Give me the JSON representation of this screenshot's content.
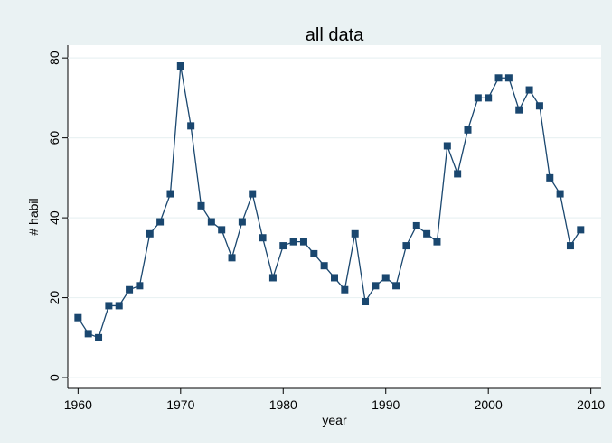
{
  "chart_data": {
    "type": "line",
    "title": "all data",
    "x_label": "year",
    "y_label": "# habil",
    "x": [
      1960,
      1961,
      1962,
      1963,
      1964,
      1965,
      1966,
      1967,
      1968,
      1969,
      1970,
      1971,
      1972,
      1973,
      1974,
      1975,
      1976,
      1977,
      1978,
      1979,
      1980,
      1981,
      1982,
      1983,
      1984,
      1985,
      1986,
      1987,
      1988,
      1989,
      1990,
      1991,
      1992,
      1993,
      1994,
      1995,
      1996,
      1997,
      1998,
      1999,
      2000,
      2001,
      2002,
      2003,
      2004,
      2005,
      2006,
      2007,
      2008,
      2009
    ],
    "values": [
      15,
      11,
      10,
      18,
      18,
      22,
      23,
      36,
      39,
      46,
      78,
      63,
      43,
      39,
      37,
      30,
      39,
      46,
      35,
      25,
      33,
      34,
      34,
      31,
      28,
      25,
      22,
      36,
      19,
      23,
      25,
      23,
      33,
      38,
      36,
      34,
      58,
      51,
      62,
      70,
      70,
      75,
      75,
      67,
      72,
      68,
      50,
      46,
      33,
      37
    ],
    "color": "#1a476f",
    "xlim": [
      1959,
      2011
    ],
    "xticks": [
      1960,
      1970,
      1980,
      1990,
      2000,
      2010
    ],
    "ylim": [
      -2.7,
      83.2
    ],
    "yticks": [
      0,
      20,
      40,
      60,
      80
    ],
    "grid": true
  }
}
